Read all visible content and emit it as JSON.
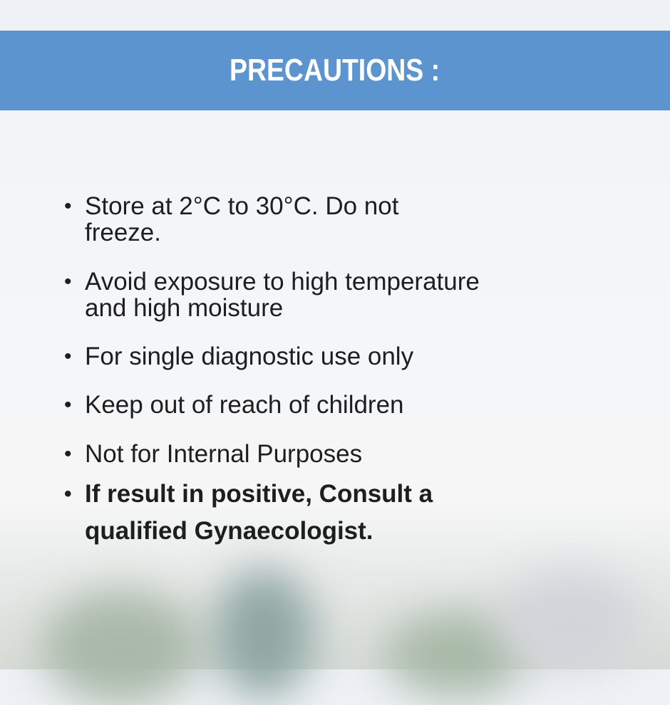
{
  "header": {
    "title": "PRECAUTIONS :",
    "color": "#5b94cf"
  },
  "items": [
    {
      "text": "Store at 2°C to 30°C. Do not freeze.",
      "bold": false
    },
    {
      "text": "Avoid exposure to high temperature and high moisture",
      "bold": false
    },
    {
      "text": "For single diagnostic use only",
      "bold": false
    },
    {
      "text": "Keep out of reach of children",
      "bold": false
    },
    {
      "text": "Not for Internal Purposes",
      "bold": false
    },
    {
      "text": "If result in positive, Consult a qualified Gynaecologist.",
      "bold": true
    }
  ]
}
